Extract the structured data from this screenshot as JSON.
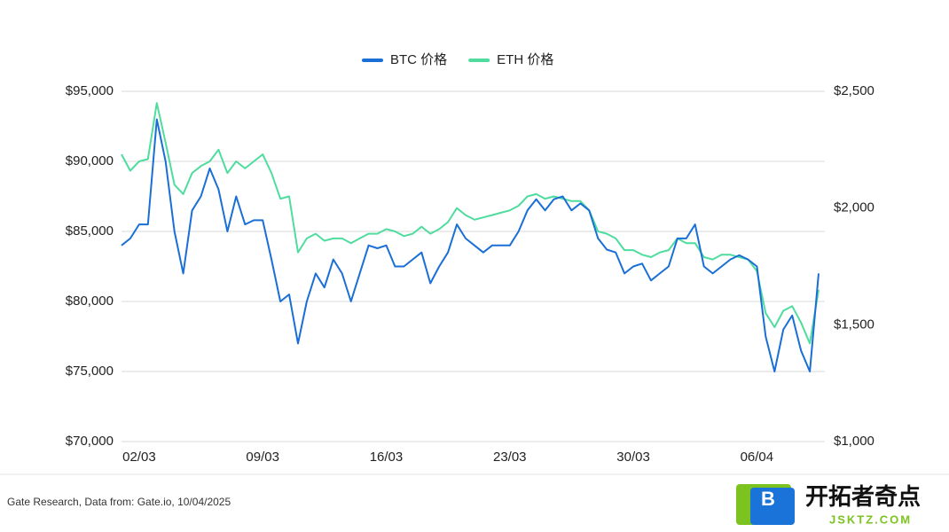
{
  "chart_data": {
    "type": "line",
    "categories": [
      null,
      null,
      "02/03",
      null,
      null,
      null,
      null,
      null,
      null,
      null,
      null,
      null,
      null,
      null,
      null,
      null,
      "09/03",
      null,
      null,
      null,
      null,
      null,
      null,
      null,
      null,
      null,
      null,
      null,
      null,
      null,
      "16/03",
      null,
      null,
      null,
      null,
      null,
      null,
      null,
      null,
      null,
      null,
      null,
      null,
      null,
      "23/03",
      null,
      null,
      null,
      null,
      null,
      null,
      null,
      null,
      null,
      null,
      null,
      null,
      null,
      "30/03",
      null,
      null,
      null,
      null,
      null,
      null,
      null,
      null,
      null,
      null,
      null,
      null,
      null,
      "06/04",
      null,
      null,
      null,
      null,
      null,
      null,
      null
    ],
    "series": [
      {
        "name": "BTC 价格",
        "color": "#1a6fd6",
        "axis": "y",
        "values": [
          84000,
          84500,
          85500,
          85500,
          93000,
          90000,
          85000,
          82000,
          86500,
          87500,
          89500,
          88000,
          85000,
          87500,
          85500,
          85800,
          85800,
          83000,
          80000,
          80500,
          77000,
          80000,
          82000,
          81000,
          83000,
          82000,
          80000,
          82000,
          84000,
          83800,
          84000,
          82500,
          82500,
          83000,
          83500,
          81300,
          82500,
          83500,
          85500,
          84500,
          84000,
          83500,
          84000,
          84000,
          84000,
          85000,
          86500,
          87300,
          86500,
          87300,
          87500,
          86500,
          87000,
          86500,
          84500,
          83700,
          83500,
          82000,
          82500,
          82700,
          81500,
          82000,
          82500,
          84500,
          84500,
          85500,
          82500,
          82000,
          82500,
          83000,
          83300,
          83000,
          82500,
          77500,
          75000,
          78000,
          79000,
          76500,
          75000,
          82000
        ]
      },
      {
        "name": "ETH 价格",
        "color": "#4fdc9e",
        "axis": "y2",
        "values": [
          2230,
          2160,
          2200,
          2210,
          2450,
          2280,
          2100,
          2060,
          2150,
          2180,
          2200,
          2250,
          2150,
          2200,
          2170,
          2200,
          2230,
          2150,
          2040,
          2050,
          1810,
          1870,
          1890,
          1860,
          1870,
          1870,
          1850,
          1870,
          1890,
          1890,
          1910,
          1900,
          1880,
          1890,
          1920,
          1890,
          1910,
          1940,
          2000,
          1970,
          1950,
          1960,
          1970,
          1980,
          1990,
          2010,
          2050,
          2060,
          2040,
          2050,
          2040,
          2030,
          2030,
          1990,
          1900,
          1890,
          1870,
          1820,
          1820,
          1800,
          1790,
          1810,
          1820,
          1870,
          1850,
          1850,
          1790,
          1780,
          1800,
          1800,
          1790,
          1780,
          1730,
          1550,
          1490,
          1560,
          1580,
          1510,
          1420,
          1650
        ]
      }
    ],
    "ylim": [
      70000,
      95000
    ],
    "yticks": [
      {
        "value": 70000,
        "label": "$70,000"
      },
      {
        "value": 75000,
        "label": "$75,000"
      },
      {
        "value": 80000,
        "label": "$80,000"
      },
      {
        "value": 85000,
        "label": "$85,000"
      },
      {
        "value": 90000,
        "label": "$90,000"
      },
      {
        "value": 95000,
        "label": "$95,000"
      }
    ],
    "y2lim": [
      1000,
      2500
    ],
    "y2ticks": [
      {
        "value": 1000,
        "label": "$1,000"
      },
      {
        "value": 1500,
        "label": "$1,500"
      },
      {
        "value": 2000,
        "label": "$2,000"
      },
      {
        "value": 2500,
        "label": "$2,500"
      }
    ],
    "grid": true,
    "legend": "top",
    "source": "Gate Research, Data from: Gate.io, 10/04/2025",
    "watermark": {
      "title": "开拓者奇点",
      "url": "JSKTZ.COM",
      "icon": "B"
    }
  }
}
